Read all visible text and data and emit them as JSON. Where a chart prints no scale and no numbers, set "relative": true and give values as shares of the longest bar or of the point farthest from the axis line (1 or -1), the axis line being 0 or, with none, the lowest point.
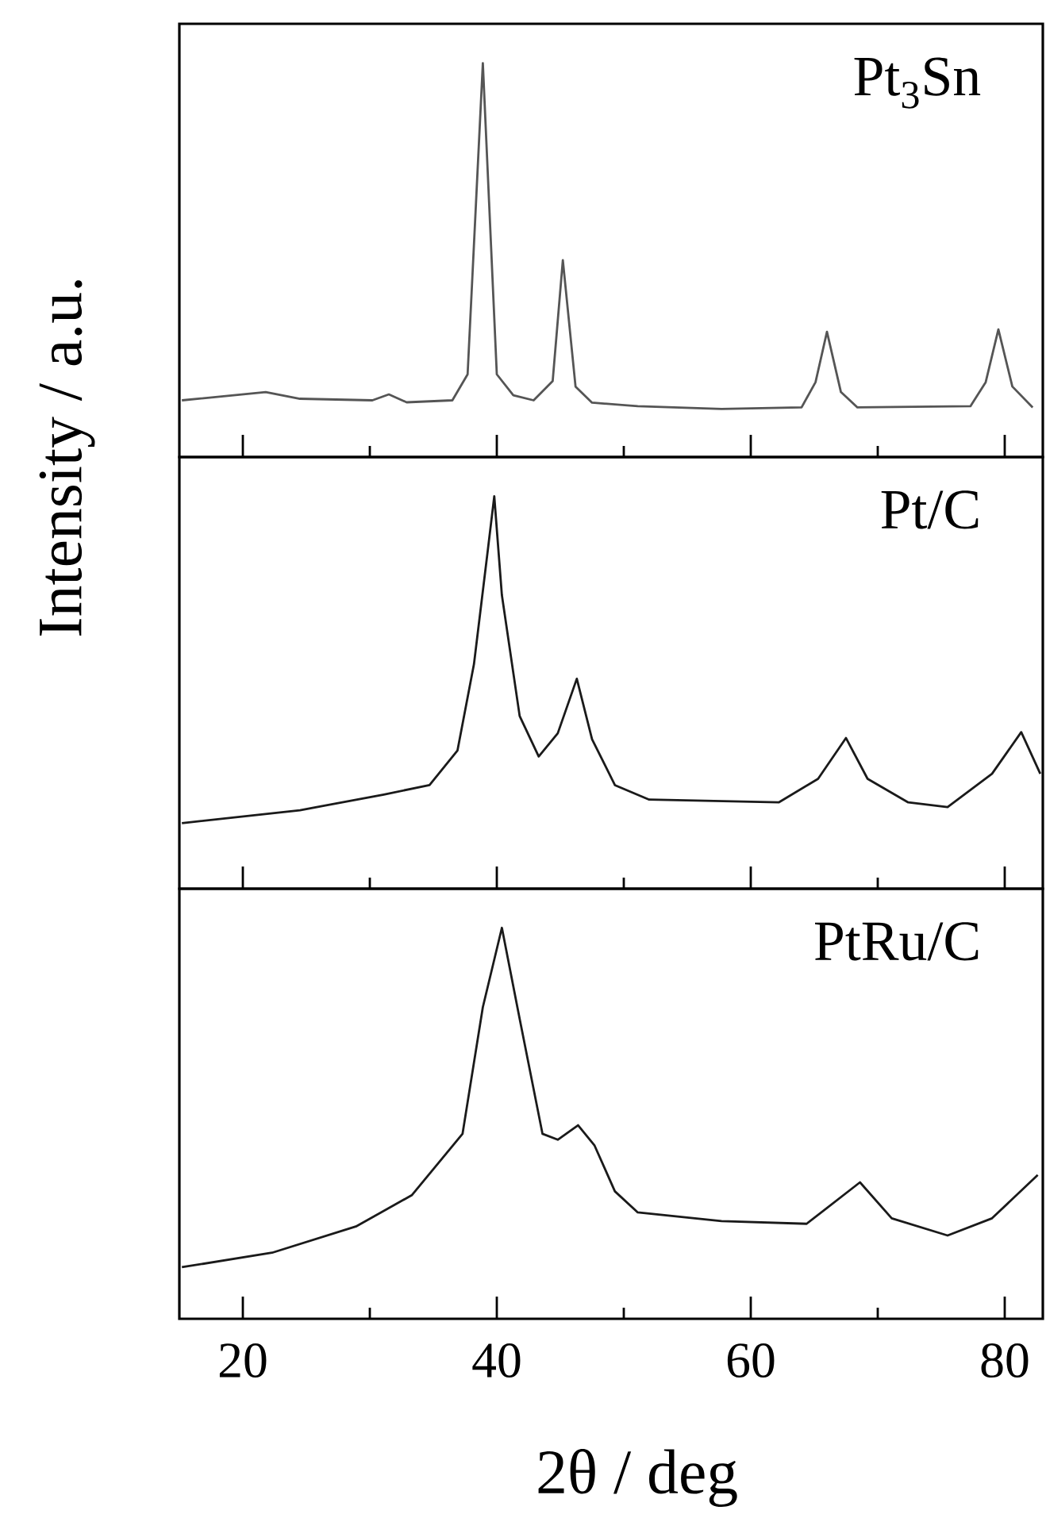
{
  "chart_data": [
    {
      "type": "line",
      "relative": true,
      "xlim": [
        15,
        83
      ],
      "xticks": [
        20,
        {
          "value": 30,
          "label": null
        },
        40,
        {
          "value": 50,
          "label": null
        },
        60,
        {
          "value": 70,
          "label": null
        },
        80
      ],
      "tick_labels": false,
      "marker": "none",
      "line_style": "solid",
      "grid": false,
      "legend": false,
      "series": [
        {
          "name": "Pt$_{3}$Sn",
          "color": "#555555",
          "x": [
            15.2,
            21.8,
            24.5,
            30.2,
            31.5,
            32.9,
            36.5,
            37.7,
            38.9,
            40.0,
            41.3,
            42.9,
            44.4,
            45.2,
            46.2,
            47.5,
            51.1,
            57.7,
            64.0,
            65.1,
            66.0,
            67.1,
            68.4,
            77.3,
            78.5,
            79.5,
            80.6,
            82.2
          ],
          "values": [
            0.144,
            0.165,
            0.148,
            0.144,
            0.159,
            0.139,
            0.144,
            0.21,
            1,
            0.21,
            0.157,
            0.144,
            0.193,
            0.5,
            0.179,
            0.138,
            0.129,
            0.122,
            0.126,
            0.19,
            0.318,
            0.165,
            0.126,
            0.129,
            0.19,
            0.324,
            0.179,
            0.126
          ]
        }
      ]
    },
    {
      "type": "line",
      "relative": true,
      "xlim": [
        15,
        83
      ],
      "xticks": [
        20,
        {
          "value": 30,
          "label": null
        },
        40,
        {
          "value": 50,
          "label": null
        },
        60,
        {
          "value": 70,
          "label": null
        },
        80
      ],
      "tick_labels": false,
      "marker": "none",
      "line_style": "solid",
      "grid": false,
      "legend": false,
      "ylabel": "Intensity / a.u.",
      "series": [
        {
          "name": "Pt/C",
          "color": "#1a1a1a",
          "x": [
            15.2,
            24.5,
            31.1,
            34.7,
            36.9,
            38.2,
            39.3,
            39.8,
            40.4,
            41.8,
            43.3,
            44.8,
            46.3,
            47.5,
            49.3,
            52.0,
            62.2,
            65.3,
            67.5,
            69.2,
            72.4,
            75.5,
            79.0,
            81.3,
            82.8
          ],
          "values": [
            0.167,
            0.2,
            0.24,
            0.264,
            0.352,
            0.572,
            0.865,
            1,
            0.748,
            0.44,
            0.337,
            0.396,
            0.535,
            0.381,
            0.264,
            0.227,
            0.22,
            0.28,
            0.384,
            0.28,
            0.22,
            0.208,
            0.293,
            0.399,
            0.293
          ]
        }
      ]
    },
    {
      "type": "line",
      "relative": true,
      "xlim": [
        15,
        83
      ],
      "xticks": [
        20,
        {
          "value": 30,
          "label": null
        },
        40,
        {
          "value": 50,
          "label": null
        },
        60,
        {
          "value": 70,
          "label": null
        },
        80
      ],
      "tick_labels": "x",
      "marker": "none",
      "line_style": "solid",
      "grid": false,
      "legend": false,
      "xlabel": "2θ / deg",
      "series": [
        {
          "name": "PtRu/C",
          "color": "#1a1a1a",
          "x": [
            15.2,
            22.3,
            28.9,
            33.3,
            37.3,
            38.9,
            40.4,
            41.8,
            43.6,
            44.8,
            46.4,
            47.7,
            49.3,
            51.1,
            57.7,
            64.4,
            68.6,
            71.1,
            75.5,
            79.0,
            82.6
          ],
          "values": [
            0.132,
            0.169,
            0.236,
            0.316,
            0.473,
            0.797,
            1,
            0.767,
            0.473,
            0.458,
            0.495,
            0.443,
            0.326,
            0.272,
            0.25,
            0.243,
            0.349,
            0.257,
            0.213,
            0.257,
            0.368
          ]
        }
      ]
    }
  ]
}
